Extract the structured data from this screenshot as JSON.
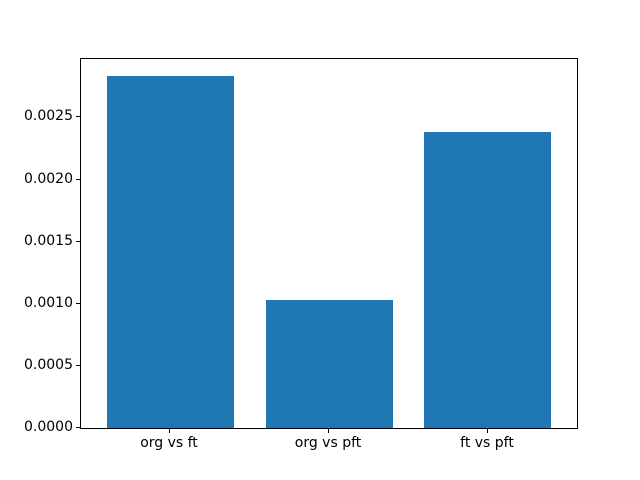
{
  "chart_data": {
    "type": "bar",
    "categories": [
      "org vs ft",
      "org vs pft",
      "ft vs pft"
    ],
    "values": [
      0.00283,
      0.00103,
      0.00238
    ],
    "title": "",
    "xlabel": "",
    "ylabel": "",
    "ylim": [
      0,
      0.00297
    ],
    "yticks": [
      0.0,
      0.0005,
      0.001,
      0.0015,
      0.002,
      0.0025
    ],
    "ytick_labels": [
      "0.0000",
      "0.0005",
      "0.0010",
      "0.0015",
      "0.0020",
      "0.0025"
    ],
    "bar_color": "#1f77b4",
    "axis_color": "#000000",
    "background_color": "#ffffff",
    "grid": false,
    "legend": null
  }
}
